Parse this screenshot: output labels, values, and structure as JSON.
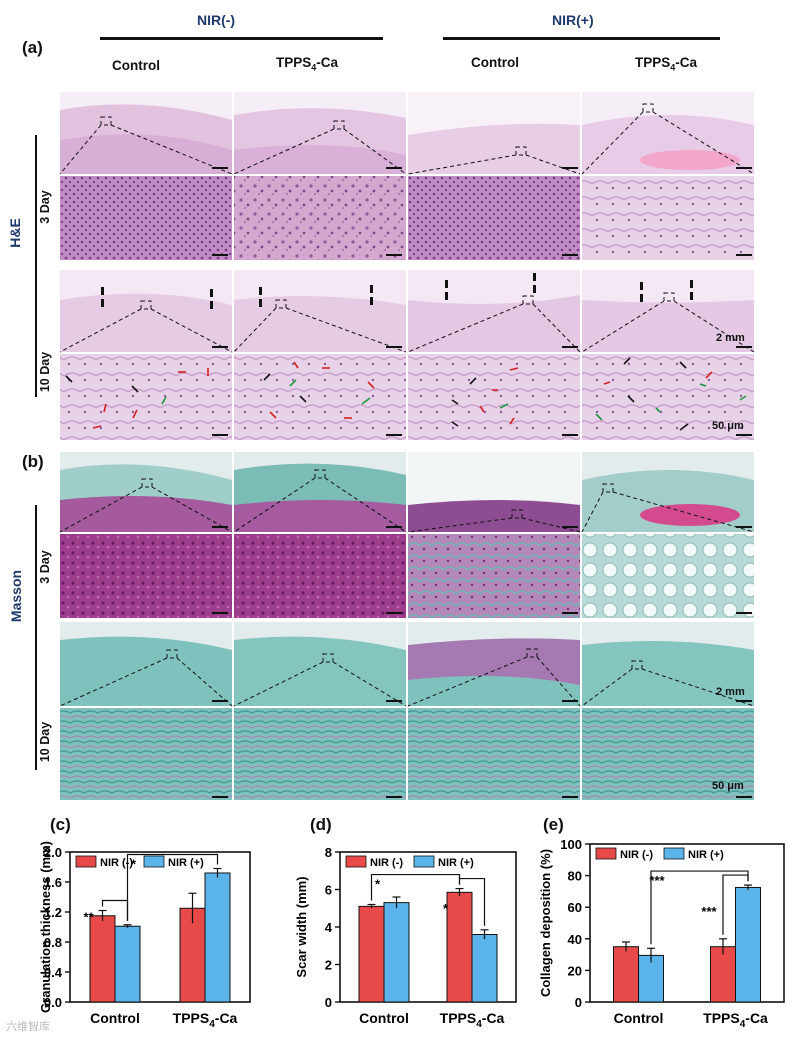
{
  "group_headers": {
    "nir_minus": "NIR(-)",
    "nir_plus": "NIR(+)"
  },
  "panels": {
    "a": "(a)",
    "b": "(b)",
    "c": "(c)",
    "d": "(d)",
    "e": "(e)"
  },
  "column_headers": [
    "Control",
    "TPPS",
    "Control",
    "TPPS"
  ],
  "column_subscript": "4",
  "column_suffix": "-Ca",
  "stains": {
    "he": "H&E",
    "masson": "Masson"
  },
  "days": {
    "d3": "3 Day",
    "d10": "10 Day"
  },
  "scale_labels": {
    "low": "2 mm",
    "high": "50 μm"
  },
  "watermark": "六维智库",
  "colors": {
    "nir_minus": "#e84a4a",
    "nir_plus": "#5ab4ea",
    "he_pink": "#d9a5cf",
    "masson_teal": "#6bb8b3",
    "masson_purple": "#9b3a8a",
    "title_blue": "#1e3a6e"
  },
  "chart_data": [
    {
      "type": "bar",
      "panel": "(c)",
      "ylabel": "Granulation thickness (mm)",
      "categories": [
        "Control",
        "TPPS4-Ca"
      ],
      "category_labels": [
        "Control",
        "TPPS"
      ],
      "ylim": [
        0,
        2.0
      ],
      "yticks": [
        "0.0",
        "0.4",
        "0.8",
        "1.2",
        "1.6",
        "2.0"
      ],
      "series": [
        {
          "name": "NIR (-)",
          "values": [
            1.15,
            1.25
          ],
          "errors": [
            0.07,
            0.2
          ]
        },
        {
          "name": "NIR (+)",
          "values": [
            1.01,
            1.72
          ],
          "errors": [
            0.02,
            0.06
          ]
        }
      ],
      "significance": [
        "**",
        "*"
      ]
    },
    {
      "type": "bar",
      "panel": "(d)",
      "ylabel": "Scar width (mm)",
      "categories": [
        "Control",
        "TPPS4-Ca"
      ],
      "category_labels": [
        "Control",
        "TPPS"
      ],
      "ylim": [
        0,
        8
      ],
      "yticks": [
        "0",
        "2",
        "4",
        "6",
        "8"
      ],
      "series": [
        {
          "name": "NIR (-)",
          "values": [
            5.1,
            5.85
          ],
          "errors": [
            0.1,
            0.2
          ]
        },
        {
          "name": "NIR (+)",
          "values": [
            5.3,
            3.6
          ],
          "errors": [
            0.3,
            0.25
          ]
        }
      ],
      "significance": [
        "*",
        "*"
      ]
    },
    {
      "type": "bar",
      "panel": "(e)",
      "ylabel": "Collagen deposition (%)",
      "categories": [
        "Control",
        "TPPS4-Ca"
      ],
      "category_labels": [
        "Control",
        "TPPS"
      ],
      "ylim": [
        0,
        100
      ],
      "yticks": [
        "0",
        "20",
        "40",
        "60",
        "80",
        "100"
      ],
      "series": [
        {
          "name": "NIR (-)",
          "values": [
            35,
            35
          ],
          "errors": [
            3,
            5
          ]
        },
        {
          "name": "NIR (+)",
          "values": [
            29.5,
            72.5
          ],
          "errors": [
            4.5,
            1.5
          ]
        }
      ],
      "significance": [
        "***",
        "***"
      ]
    }
  ]
}
